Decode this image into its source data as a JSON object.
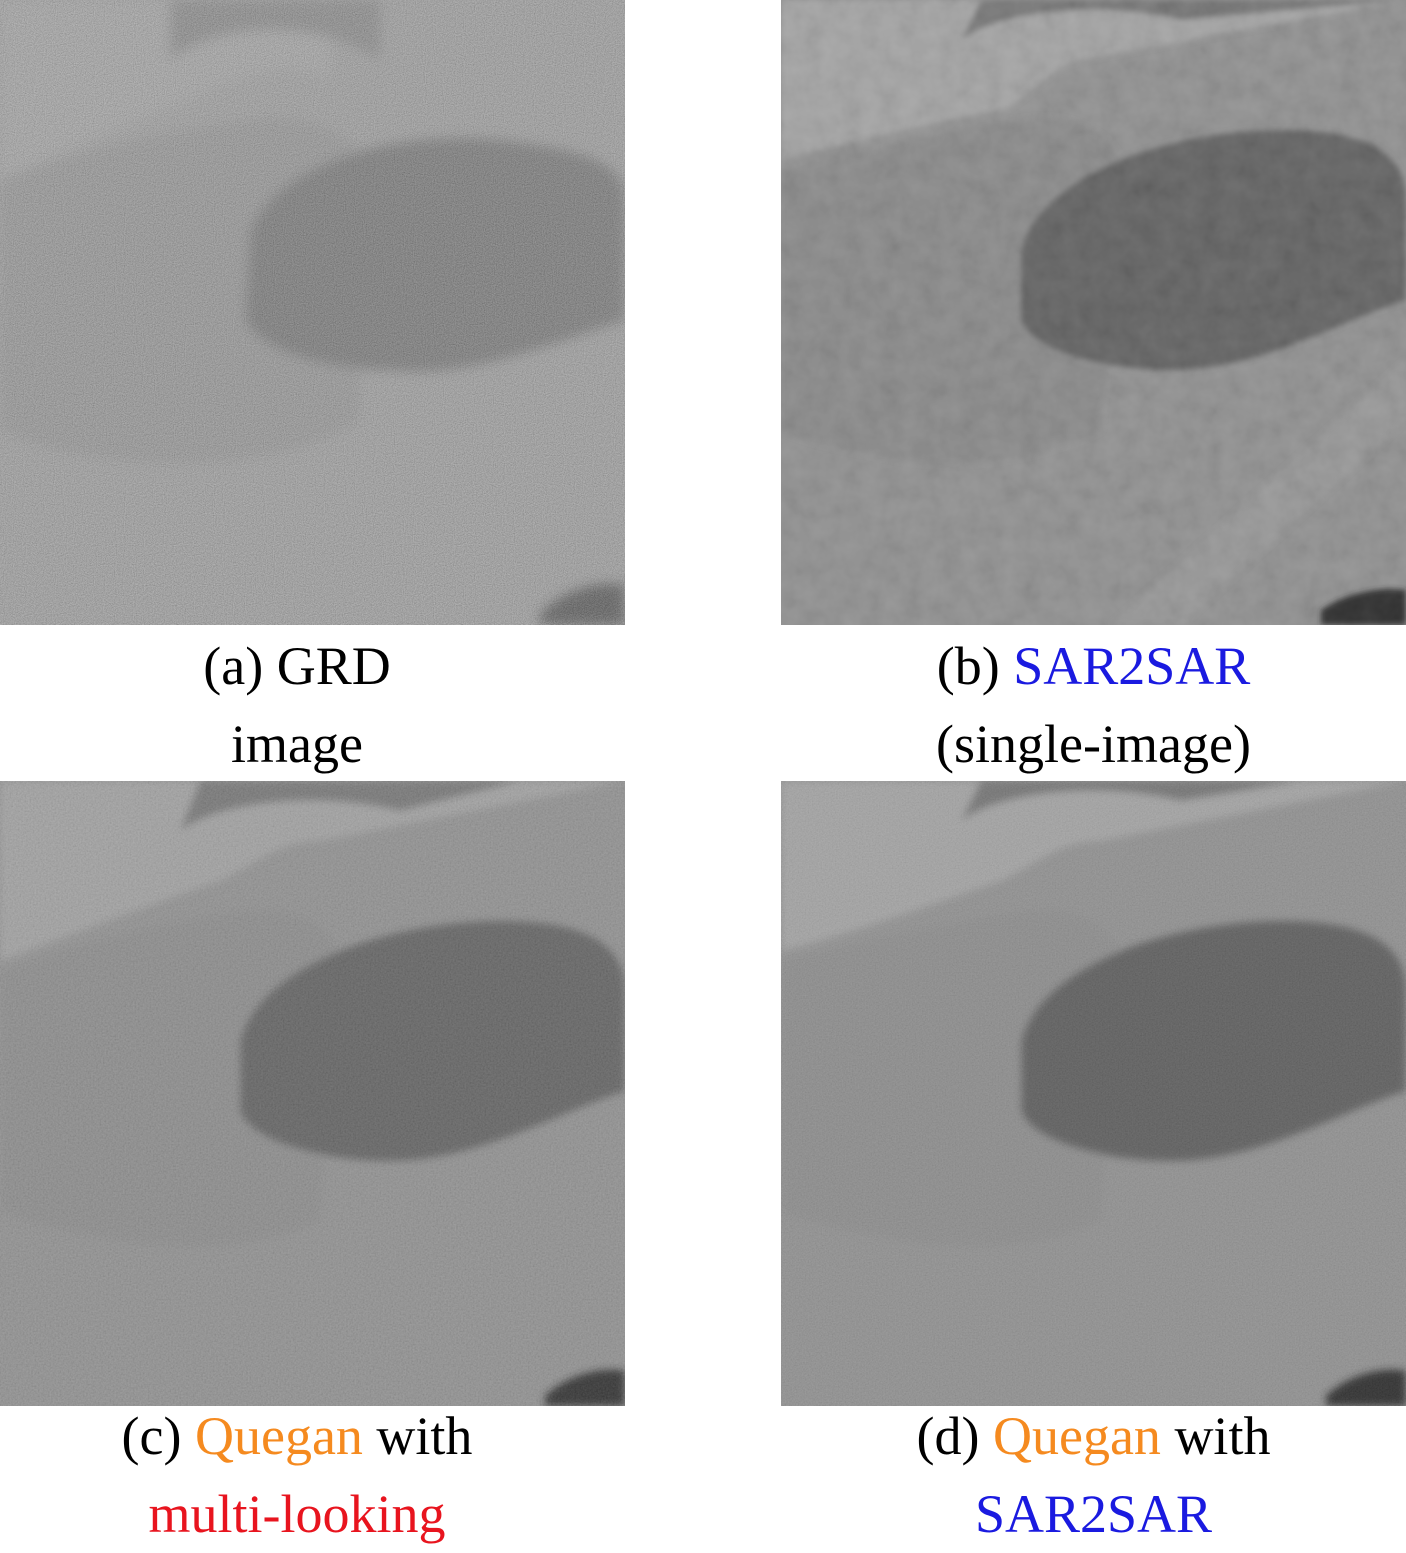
{
  "colors": {
    "blue": "#1a1ae0",
    "orange": "#f58a1f",
    "red": "#e8141e",
    "black": "#000000"
  },
  "panels": [
    {
      "id": "a",
      "caption": {
        "line1": [
          {
            "text": "(a) GRD",
            "color": "black"
          }
        ],
        "line2": [
          {
            "text": "image",
            "color": "black"
          }
        ]
      },
      "noise": "speckle"
    },
    {
      "id": "b",
      "caption": {
        "line1": [
          {
            "text": "(b) ",
            "color": "black"
          },
          {
            "text": "SAR2SAR",
            "color": "blue"
          }
        ],
        "line2": [
          {
            "text": "(single-image)",
            "color": "black"
          }
        ]
      },
      "noise": "smooth"
    },
    {
      "id": "c",
      "caption": {
        "line1": [
          {
            "text": "(c) ",
            "color": "black"
          },
          {
            "text": "Quegan",
            "color": "orange"
          },
          {
            "text": " with",
            "color": "black"
          }
        ],
        "line2": [
          {
            "text": "multi-looking",
            "color": "red"
          }
        ]
      },
      "noise": "medium"
    },
    {
      "id": "d",
      "caption": {
        "line1": [
          {
            "text": "(d) ",
            "color": "black"
          },
          {
            "text": "Quegan",
            "color": "orange"
          },
          {
            "text": " with",
            "color": "black"
          }
        ],
        "line2": [
          {
            "text": "SAR2SAR",
            "color": "blue"
          }
        ]
      },
      "noise": "light"
    }
  ]
}
